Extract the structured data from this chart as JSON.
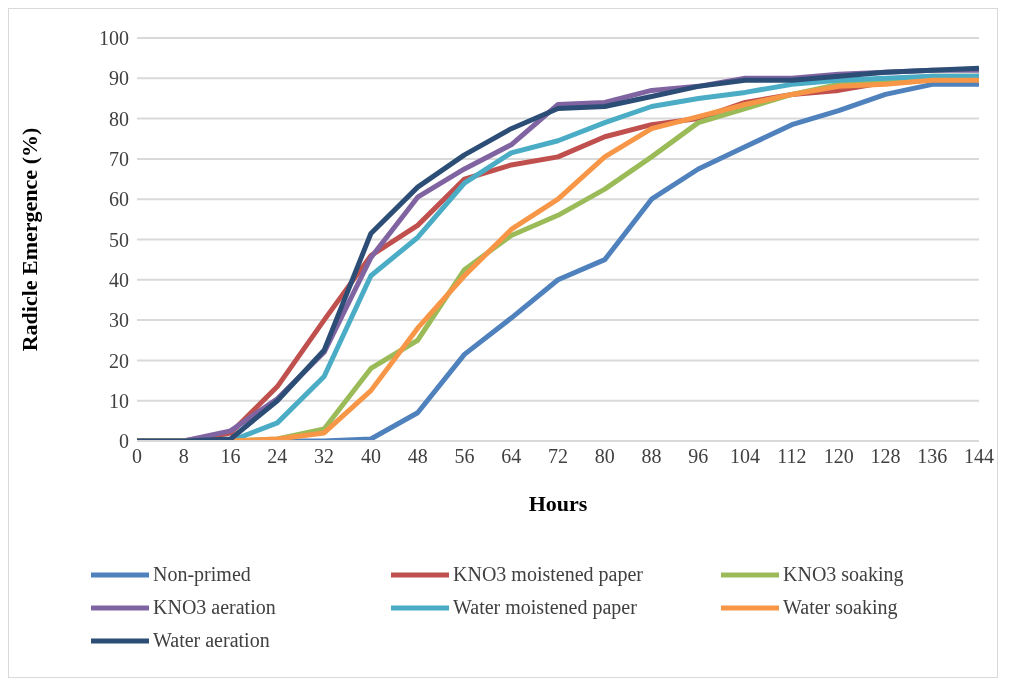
{
  "chart_data": {
    "type": "line",
    "xlabel": "Hours",
    "ylabel": "Radicle Emergence (%)",
    "categories": [
      "0",
      "8",
      "16",
      "24",
      "32",
      "40",
      "48",
      "56",
      "64",
      "72",
      "80",
      "88",
      "96",
      "104",
      "112",
      "120",
      "128",
      "136",
      "144"
    ],
    "ylim": [
      0,
      100
    ],
    "yticks": [
      0,
      10,
      20,
      30,
      40,
      50,
      60,
      70,
      80,
      90,
      100
    ],
    "grid": "y",
    "legend": "bottom",
    "marker": "none",
    "line_style": "solid",
    "series": [
      {
        "name": "Non-primed",
        "color": "#4f81bd",
        "values": [
          0,
          0,
          0,
          0,
          0,
          0.5,
          7,
          21.5,
          30.5,
          40,
          45,
          60,
          67.5,
          73,
          78.5,
          82,
          86,
          88.5,
          88.5
        ]
      },
      {
        "name": "KNO3 moistened paper",
        "color": "#c0504d",
        "values": [
          0,
          0,
          2,
          13.5,
          30,
          46,
          53.5,
          65,
          68.5,
          70.5,
          75.5,
          78.5,
          80,
          84,
          86,
          87,
          89,
          90,
          90.5
        ]
      },
      {
        "name": "KNO3 soaking",
        "color": "#9bbb59",
        "values": [
          0,
          0,
          0,
          0.5,
          3,
          18,
          25,
          42.5,
          51,
          56,
          62.5,
          70.5,
          79,
          82.5,
          86,
          88.5,
          89.5,
          90.5,
          90.5
        ]
      },
      {
        "name": "KNO3 aeration",
        "color": "#8064a2",
        "values": [
          0,
          0,
          2.5,
          10.5,
          22,
          45.5,
          60.5,
          67.5,
          73.5,
          83.5,
          84,
          87,
          88,
          90,
          90,
          91,
          91.5,
          92,
          92
        ]
      },
      {
        "name": "Water moistened paper",
        "color": "#4bacc6",
        "values": [
          0,
          0,
          0,
          4.5,
          16,
          41,
          50.5,
          64,
          71.5,
          74.5,
          79,
          83,
          85,
          86.5,
          88.5,
          89.5,
          90,
          90.5,
          90.5
        ]
      },
      {
        "name": "Water soaking",
        "color": "#f79646",
        "values": [
          0,
          0,
          0,
          0.5,
          2,
          12.5,
          28,
          41,
          52.5,
          60,
          70.5,
          77.5,
          80.5,
          83.5,
          86,
          88,
          88.5,
          89.5,
          89.5
        ]
      },
      {
        "name": "Water aeration",
        "color": "#2c4d75",
        "values": [
          0,
          0,
          0.5,
          10,
          22.5,
          51.5,
          63,
          71,
          77.5,
          82.5,
          83,
          85.5,
          88,
          89.5,
          89.5,
          90.5,
          91.5,
          92,
          92.5
        ]
      }
    ]
  }
}
